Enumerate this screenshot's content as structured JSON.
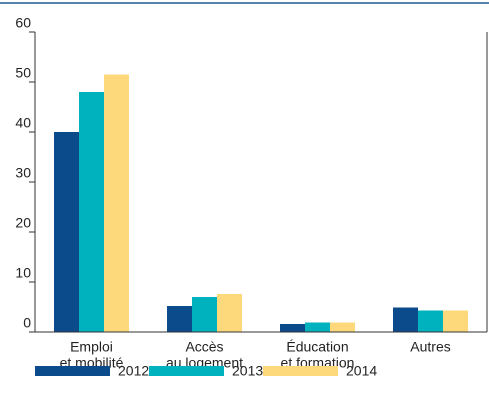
{
  "chart_data": {
    "type": "bar",
    "categories": [
      [
        "Emploi",
        "et mobilité"
      ],
      [
        "Accès",
        "au logement"
      ],
      [
        "Éducation",
        "et formation"
      ],
      [
        "Autres"
      ]
    ],
    "series": [
      {
        "name": "2012",
        "color": "#0b4a8b",
        "values": [
          40,
          5.2,
          1.6,
          4.9
        ]
      },
      {
        "name": "2013",
        "color": "#00b2bd",
        "values": [
          48,
          7,
          1.9,
          4.3
        ]
      },
      {
        "name": "2014",
        "color": "#fdd97c",
        "values": [
          51.5,
          7.6,
          1.9,
          4.3
        ]
      }
    ],
    "ylim": [
      0,
      60
    ],
    "yticks": [
      0,
      10,
      20,
      30,
      40,
      50,
      60
    ]
  }
}
